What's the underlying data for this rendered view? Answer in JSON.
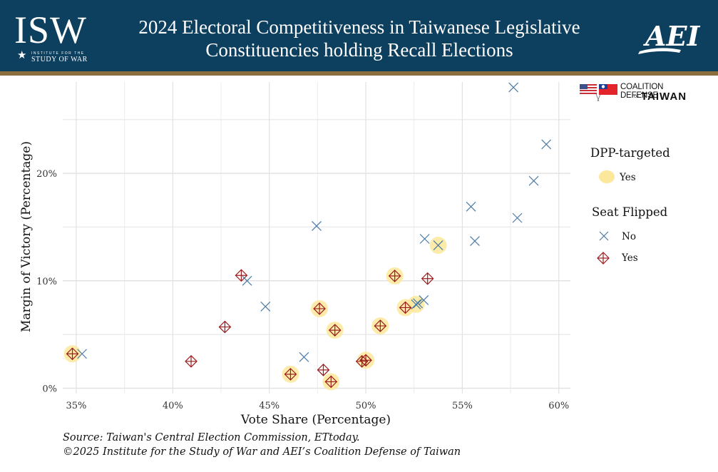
{
  "header": {
    "title_line1": "2024 Electoral Competitiveness in Taiwanese Legislative",
    "title_line2": "Constituencies holding Recall Elections",
    "left_logo": {
      "letters": "ISW",
      "sub1": "INSTITUTE FOR THE",
      "sub2": "STUDY OF WAR",
      "icon": "star-icon"
    },
    "right_logo": {
      "text": "AEI"
    },
    "colors": {
      "background": "#0d3f5f",
      "stripe": "#8a6e3e"
    }
  },
  "partner_logo": {
    "line1": "COALITION DEFENSE",
    "of": "OF",
    "line2": "TAIWAN",
    "icons": [
      "us-flag-icon",
      "taiwan-flag-icon"
    ]
  },
  "legend": {
    "dpp_title": "DPP-targeted",
    "dpp_items": [
      {
        "label": "Yes",
        "color": "#fbe89a"
      }
    ],
    "flip_title": "Seat Flipped",
    "flip_items": [
      {
        "label": "No",
        "marker": "x",
        "color": "#4a7aa6"
      },
      {
        "label": "Yes",
        "marker": "diamond-plus",
        "color": "#9b1c1c"
      }
    ]
  },
  "footer": {
    "source": "Source: Taiwan's Central Election Commission, ETtoday.",
    "copyright": "©2025 Institute for the Study of War and AEI’s Coalition Defense of Taiwan"
  },
  "chart_data": {
    "type": "scatter",
    "title": "2024 Electoral Competitiveness in Taiwanese Legislative Constituencies holding Recall Elections",
    "xlabel": "Vote Share (Percentage)",
    "ylabel": "Margin of Victory (Percentage)",
    "xlim": [
      34.3,
      60.6
    ],
    "ylim": [
      -0.5,
      28.5
    ],
    "xticks": [
      35,
      40,
      45,
      50,
      55,
      60
    ],
    "xtick_labels": [
      "35%",
      "40%",
      "45%",
      "50%",
      "55%",
      "60%"
    ],
    "yticks": [
      0,
      10,
      20
    ],
    "ytick_labels": [
      "0%",
      "10%",
      "20%"
    ],
    "minor_x": [
      37.5,
      42.5,
      47.5,
      52.5,
      57.5
    ],
    "minor_y": [
      5,
      15,
      25
    ],
    "grid": true,
    "legend_position": "right",
    "points": [
      {
        "x": 57.65,
        "y": 28.0,
        "flipped": false,
        "dpp_targeted": false
      },
      {
        "x": 59.35,
        "y": 22.7,
        "flipped": false,
        "dpp_targeted": false
      },
      {
        "x": 58.7,
        "y": 19.3,
        "flipped": false,
        "dpp_targeted": false
      },
      {
        "x": 55.45,
        "y": 16.9,
        "flipped": false,
        "dpp_targeted": false
      },
      {
        "x": 57.85,
        "y": 15.85,
        "flipped": false,
        "dpp_targeted": false
      },
      {
        "x": 47.45,
        "y": 15.1,
        "flipped": false,
        "dpp_targeted": false
      },
      {
        "x": 55.65,
        "y": 13.7,
        "flipped": false,
        "dpp_targeted": false
      },
      {
        "x": 53.05,
        "y": 13.9,
        "flipped": false,
        "dpp_targeted": false
      },
      {
        "x": 53.75,
        "y": 13.3,
        "flipped": false,
        "dpp_targeted": true
      },
      {
        "x": 43.55,
        "y": 10.5,
        "flipped": true,
        "dpp_targeted": false
      },
      {
        "x": 43.85,
        "y": 10.0,
        "flipped": false,
        "dpp_targeted": false
      },
      {
        "x": 51.5,
        "y": 10.45,
        "flipped": true,
        "dpp_targeted": true
      },
      {
        "x": 53.2,
        "y": 10.2,
        "flipped": true,
        "dpp_targeted": false
      },
      {
        "x": 44.8,
        "y": 7.6,
        "flipped": false,
        "dpp_targeted": false
      },
      {
        "x": 47.6,
        "y": 7.4,
        "flipped": true,
        "dpp_targeted": true
      },
      {
        "x": 52.05,
        "y": 7.5,
        "flipped": true,
        "dpp_targeted": true
      },
      {
        "x": 52.6,
        "y": 7.8,
        "flipped": false,
        "dpp_targeted": true
      },
      {
        "x": 52.7,
        "y": 7.9,
        "flipped": false,
        "dpp_targeted": false
      },
      {
        "x": 53.0,
        "y": 8.2,
        "flipped": false,
        "dpp_targeted": false
      },
      {
        "x": 42.7,
        "y": 5.7,
        "flipped": true,
        "dpp_targeted": false
      },
      {
        "x": 48.4,
        "y": 5.4,
        "flipped": true,
        "dpp_targeted": true
      },
      {
        "x": 50.75,
        "y": 5.8,
        "flipped": true,
        "dpp_targeted": true
      },
      {
        "x": 34.8,
        "y": 3.2,
        "flipped": true,
        "dpp_targeted": true
      },
      {
        "x": 35.3,
        "y": 3.2,
        "flipped": false,
        "dpp_targeted": false
      },
      {
        "x": 40.95,
        "y": 2.5,
        "flipped": true,
        "dpp_targeted": false
      },
      {
        "x": 46.8,
        "y": 2.9,
        "flipped": false,
        "dpp_targeted": false
      },
      {
        "x": 47.8,
        "y": 1.7,
        "flipped": true,
        "dpp_targeted": false
      },
      {
        "x": 46.1,
        "y": 1.3,
        "flipped": true,
        "dpp_targeted": true
      },
      {
        "x": 48.2,
        "y": 0.6,
        "flipped": true,
        "dpp_targeted": true
      },
      {
        "x": 49.8,
        "y": 2.5,
        "flipped": true,
        "dpp_targeted": false
      },
      {
        "x": 50.0,
        "y": 2.6,
        "flipped": true,
        "dpp_targeted": true
      }
    ]
  }
}
